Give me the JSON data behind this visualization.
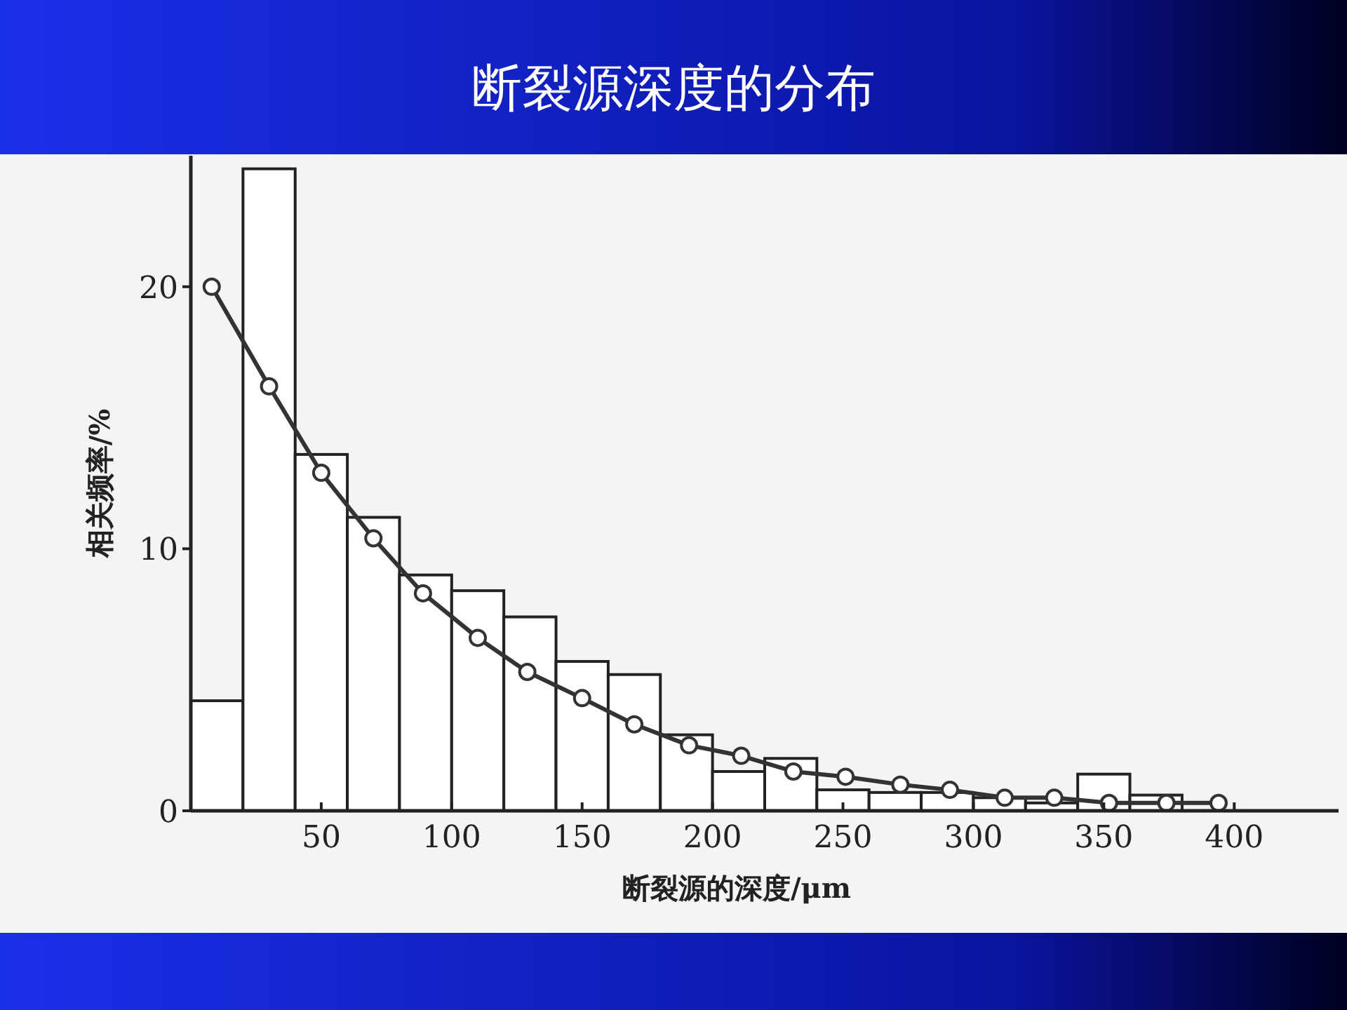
{
  "chart_data": {
    "type": "histogram",
    "title": "断裂源深度的分布",
    "xlabel": "断裂源的深度/μm",
    "ylabel": "相关频率/%",
    "bins": [
      0,
      20,
      40,
      60,
      80,
      100,
      120,
      140,
      160,
      180,
      200,
      220,
      240,
      260,
      280,
      300,
      320,
      340,
      360,
      380
    ],
    "values": [
      4.2,
      24.5,
      13.6,
      11.2,
      9.0,
      8.4,
      7.4,
      5.7,
      5.2,
      2.9,
      1.5,
      2.0,
      0.8,
      0.7,
      0.7,
      0.5,
      0.3,
      1.4,
      0.6
    ],
    "color": "#ffffff",
    "series": [
      {
        "type": "line",
        "color": "#333333",
        "x": [
          8,
          30,
          50,
          70,
          89,
          110,
          129,
          150,
          170,
          191,
          211,
          231,
          251,
          272,
          291,
          312,
          331,
          352,
          374,
          394
        ],
        "values": [
          20.0,
          16.2,
          12.9,
          10.4,
          8.3,
          6.6,
          5.3,
          4.3,
          3.3,
          2.5,
          2.1,
          1.5,
          1.3,
          1.0,
          0.8,
          0.5,
          0.5,
          0.3,
          0.3,
          0.3
        ]
      }
    ],
    "marker": "circle",
    "xlim": [
      0,
      440
    ],
    "ylim": [
      0,
      25
    ],
    "xticks": [
      50,
      100,
      150,
      200,
      250,
      300,
      350,
      400
    ],
    "yticks": [
      0,
      10,
      20
    ],
    "grid": false
  }
}
